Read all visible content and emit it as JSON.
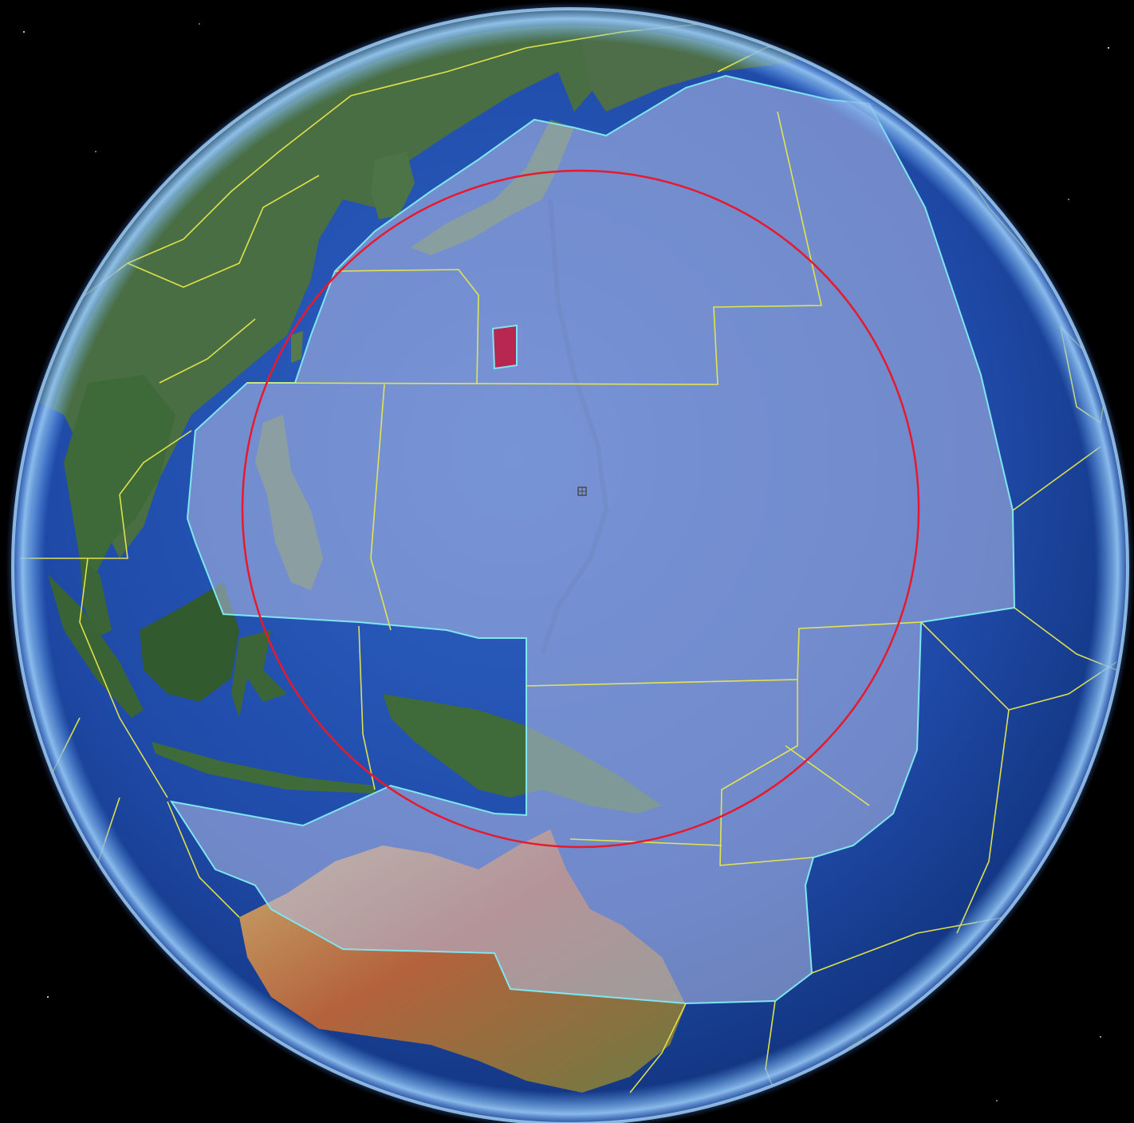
{
  "view": {
    "type": "globe",
    "background_color": "#000000",
    "ocean_color": "#1f4aa8",
    "land_colors": {
      "temperate": "#3f6a3a",
      "arid": "#b3623a",
      "tropical": "#2e5a2e"
    },
    "boundary_line_color": "#e8e84a",
    "airspace_fill_color": "#b4bee6",
    "airspace_edge_color": "#7fe6f0",
    "range_ring_color": "#e8192c",
    "marker_color": "#c4143a"
  },
  "features": {
    "range_ring": {
      "label": ""
    },
    "highlight_box": {
      "label": ""
    },
    "center_marker": {
      "label": ""
    }
  }
}
